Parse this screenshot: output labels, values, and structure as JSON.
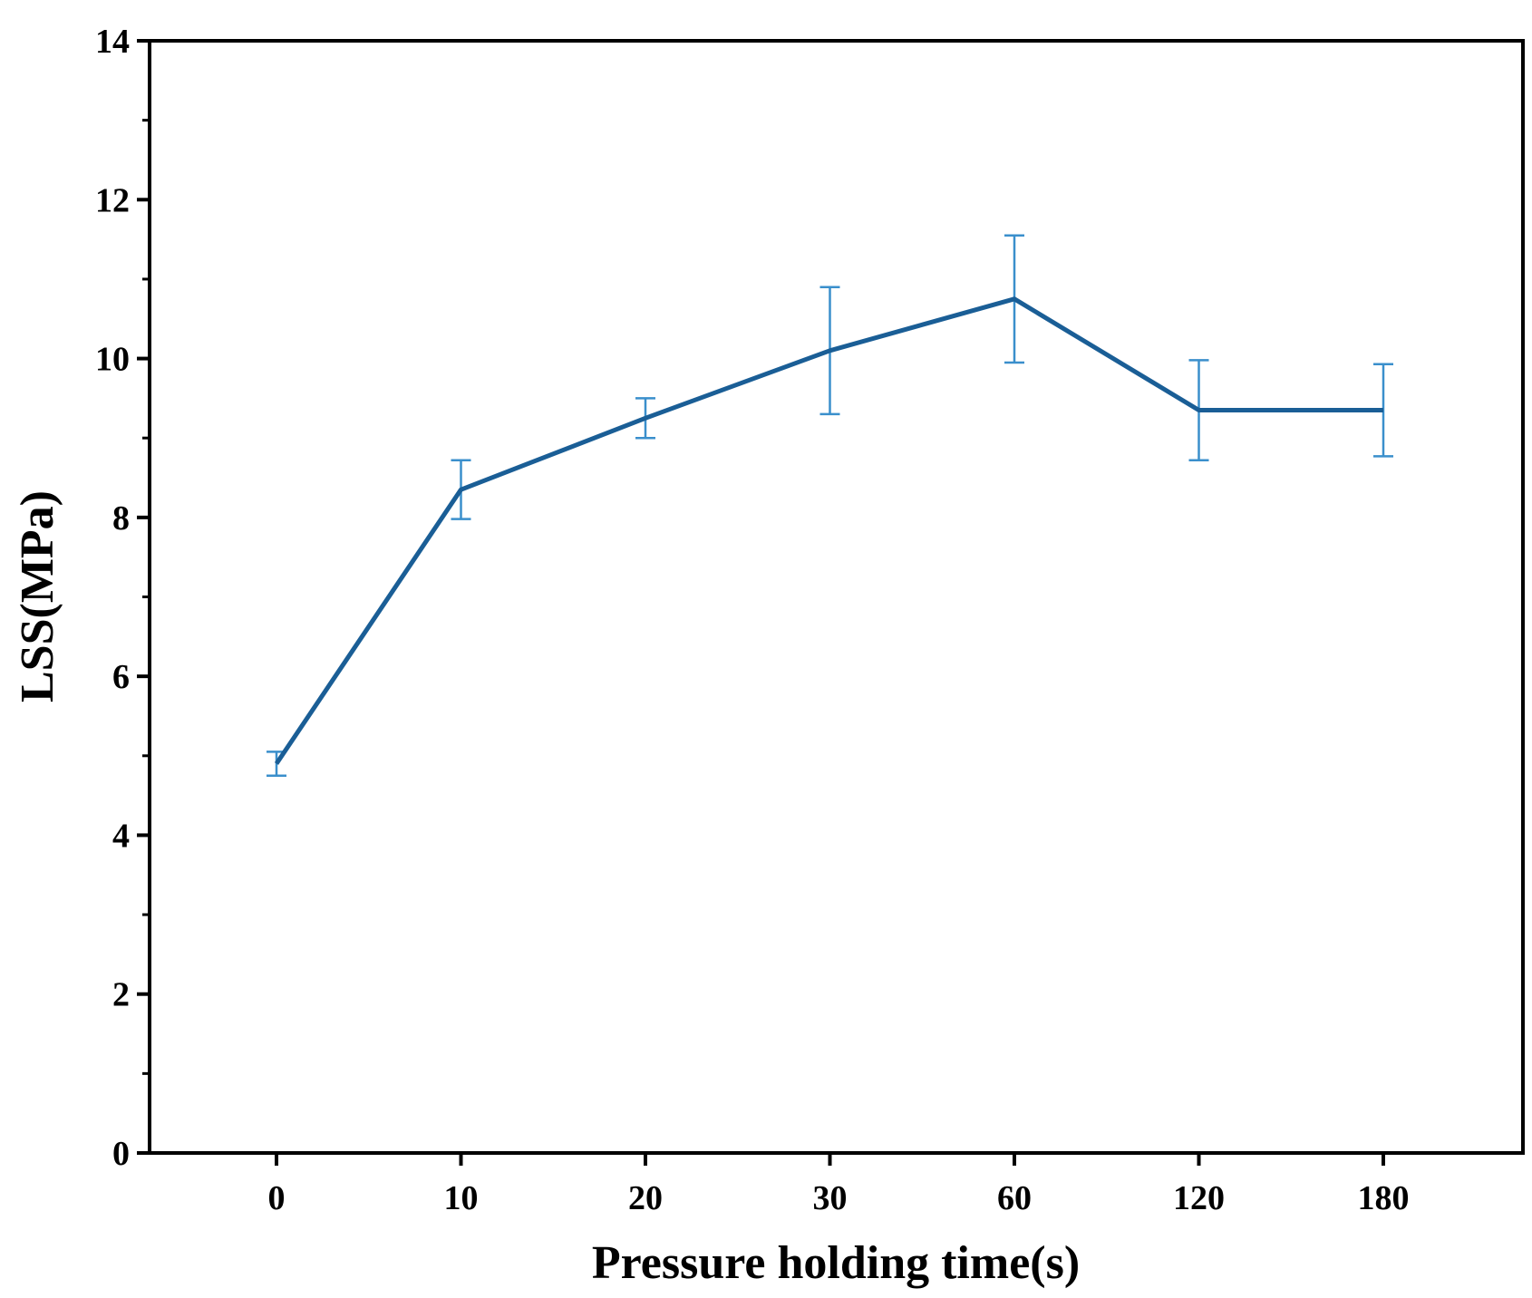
{
  "chart_data": {
    "type": "line",
    "categories": [
      "0",
      "10",
      "20",
      "30",
      "60",
      "120",
      "180"
    ],
    "series": [
      {
        "values": [
          4.9,
          8.35,
          9.25,
          10.1,
          10.75,
          9.35,
          9.35
        ],
        "error": [
          0.15,
          0.37,
          0.25,
          0.8,
          0.8,
          0.63,
          0.58
        ]
      }
    ],
    "xlabel": "Pressure holding time(s)",
    "ylabel": "LSS(MPa)",
    "ylim": [
      0,
      14
    ],
    "yticks": [
      0,
      2,
      4,
      6,
      8,
      10,
      12,
      14
    ],
    "grid": false,
    "line_color": "#1a5e96",
    "errorbar_color": "#3a8fcc"
  }
}
